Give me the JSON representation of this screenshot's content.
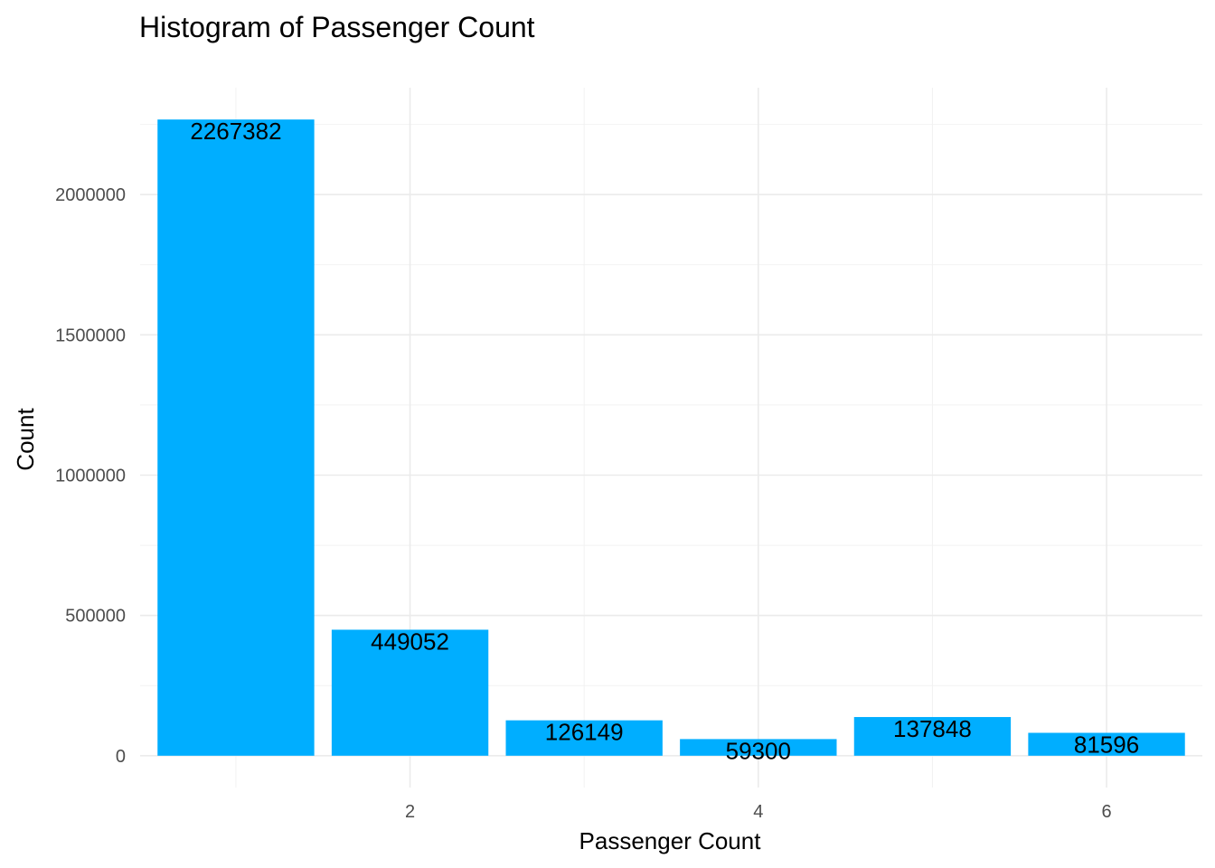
{
  "chart_data": {
    "type": "bar",
    "title": "Histogram of Passenger Count",
    "xlabel": "Passenger Count",
    "ylabel": "Count",
    "x": [
      1,
      2,
      3,
      4,
      5,
      6
    ],
    "values": [
      2267382,
      449052,
      126149,
      59300,
      137848,
      81596
    ],
    "data_labels": [
      "2267382",
      "449052",
      "126149",
      "59300",
      "137848",
      "81596"
    ],
    "xticks": [
      2,
      4,
      6
    ],
    "xtick_labels": [
      "2",
      "4",
      "6"
    ],
    "yticks": [
      0,
      500000,
      1000000,
      1500000,
      2000000
    ],
    "ytick_labels": [
      "0",
      "500000",
      "1000000",
      "1500000",
      "2000000"
    ],
    "xlim": [
      0.45,
      6.55
    ],
    "ylim": [
      -113369,
      2380751
    ],
    "bar_color": "#00aeff",
    "grid": true,
    "legend": "none"
  }
}
